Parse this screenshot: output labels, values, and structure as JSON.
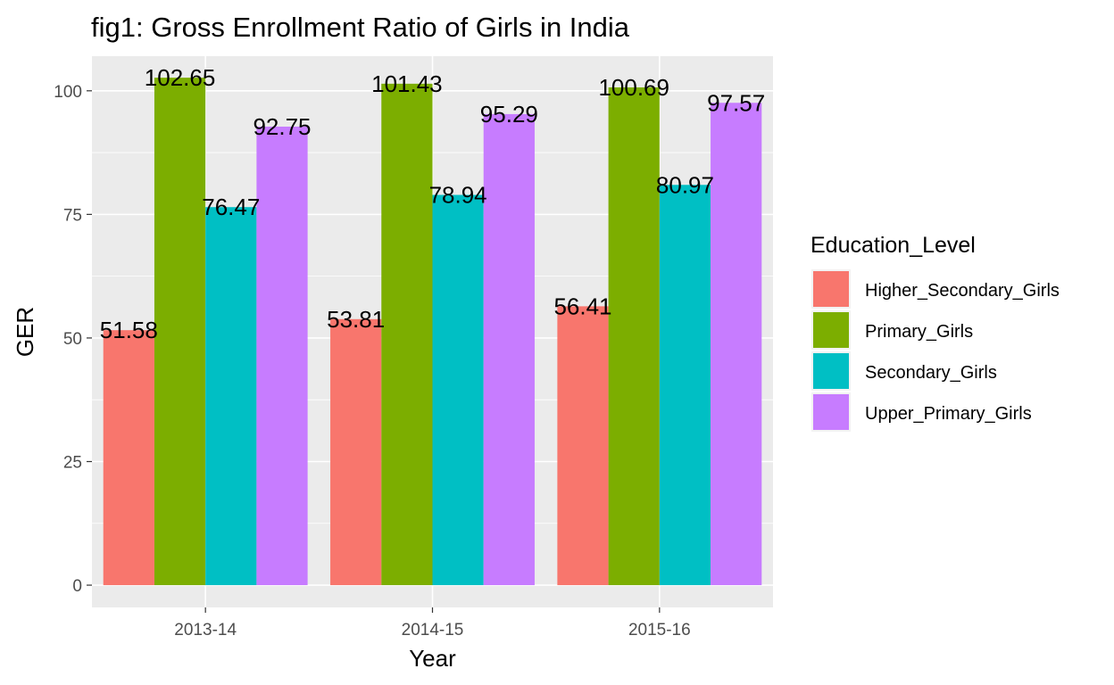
{
  "chart_data": {
    "type": "bar",
    "title": "fig1: Gross Enrollment Ratio of Girls in India",
    "xlabel": "Year",
    "ylabel": "GER",
    "categories": [
      "2013-14",
      "2014-15",
      "2015-16"
    ],
    "ylim": [
      -4.5,
      107
    ],
    "yticks": [
      0,
      25,
      50,
      75,
      100
    ],
    "grid": true,
    "legend": {
      "title": "Education_Level",
      "position": "right"
    },
    "series": [
      {
        "name": "Higher_Secondary_Girls",
        "color": "#F8766D",
        "values": [
          51.58,
          53.81,
          56.41
        ]
      },
      {
        "name": "Primary_Girls",
        "color": "#7CAE00",
        "values": [
          102.65,
          101.43,
          100.69
        ]
      },
      {
        "name": "Secondary_Girls",
        "color": "#00BFC4",
        "values": [
          76.47,
          78.94,
          80.97
        ]
      },
      {
        "name": "Upper_Primary_Girls",
        "color": "#C77CFF",
        "values": [
          92.75,
          95.29,
          97.57
        ]
      }
    ],
    "colors": {
      "panel": "#EBEBEB",
      "grid": "#FFFFFF",
      "tick_text": "#4D4D4D"
    }
  }
}
